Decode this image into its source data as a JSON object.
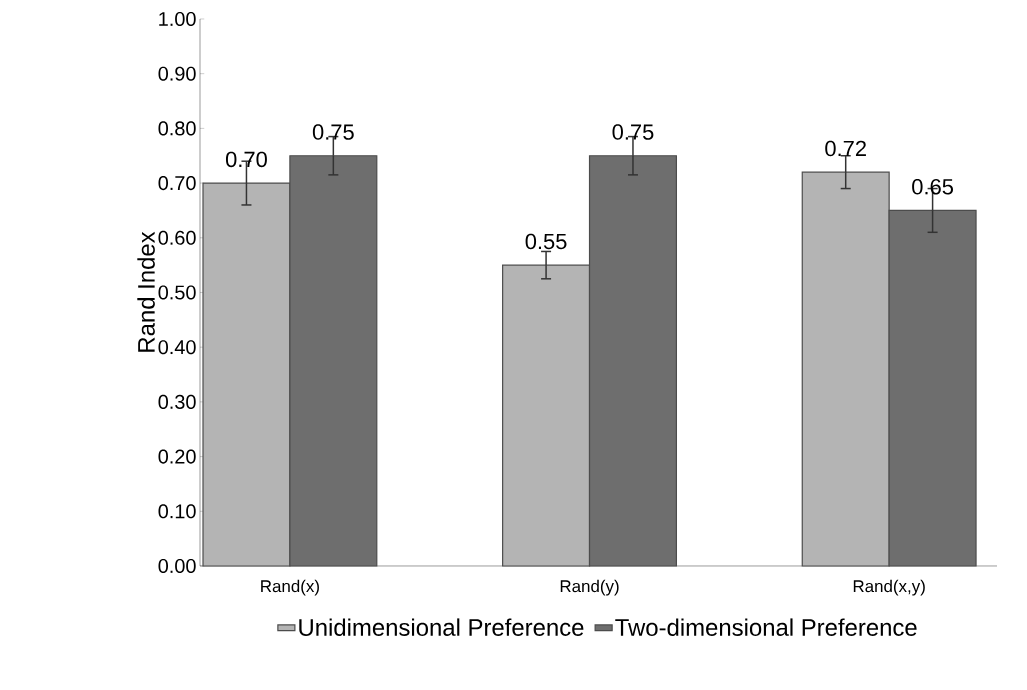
{
  "chart_data": {
    "type": "bar",
    "ylabel": "Rand Index",
    "categories": [
      "Rand(x)",
      "Rand(y)",
      "Rand(x,y)"
    ],
    "series": [
      {
        "name": "Unidimensional Preference",
        "color": "#b4b4b4",
        "values": [
          0.7,
          0.55,
          0.72
        ],
        "errors": [
          0.04,
          0.025,
          0.03
        ],
        "value_labels": [
          "0.70",
          "0.55",
          "0.72"
        ]
      },
      {
        "name": "Two-dimensional Preference",
        "color": "#6e6e6e",
        "values": [
          0.75,
          0.75,
          0.65
        ],
        "errors": [
          0.035,
          0.035,
          0.04
        ],
        "value_labels": [
          "0.75",
          "0.75",
          "0.65"
        ]
      }
    ],
    "ylim": [
      0,
      1
    ],
    "yticks": [
      {
        "value": 0,
        "label": "0.00"
      },
      {
        "value": 0.1,
        "label": "0.10"
      },
      {
        "value": 0.2,
        "label": "0.20"
      },
      {
        "value": 0.3,
        "label": "0.30"
      },
      {
        "value": 0.4,
        "label": "0.40"
      },
      {
        "value": 0.5,
        "label": "0.50"
      },
      {
        "value": 0.6,
        "label": "0.60"
      },
      {
        "value": 0.7,
        "label": "0.70"
      },
      {
        "value": 0.8,
        "label": "0.80"
      },
      {
        "value": 0.9,
        "label": "0.90"
      },
      {
        "value": 1,
        "label": "1.00"
      }
    ],
    "grid": false,
    "legend": "bottom"
  }
}
